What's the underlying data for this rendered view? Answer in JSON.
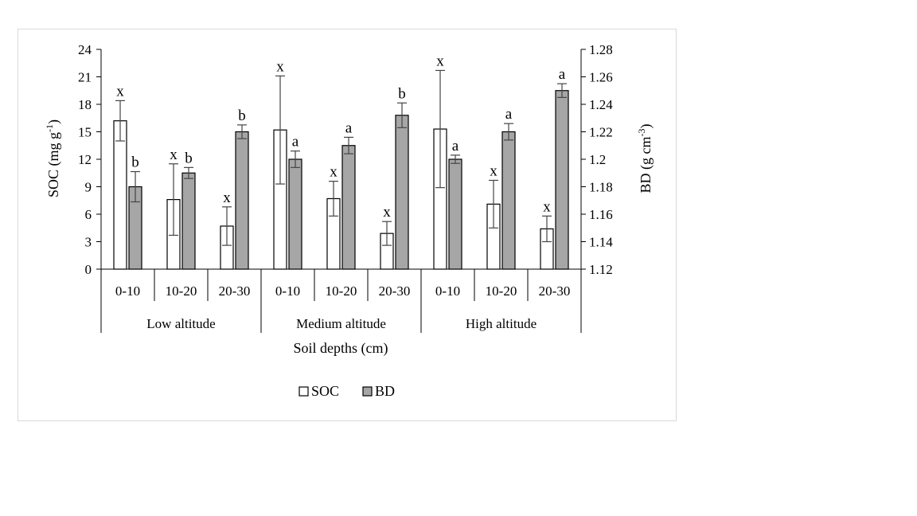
{
  "chart_data": {
    "type": "bar",
    "xlabel": "Soil depths (cm)",
    "ylabel_left": {
      "main": "SOC (mg g",
      "sup": "-1",
      "tail": ")"
    },
    "ylabel_right": {
      "main": "BD (g cm",
      "sup": "-3",
      "tail": ")"
    },
    "y_left": {
      "min": 0,
      "max": 24,
      "ticks": [
        "0",
        "3",
        "6",
        "9",
        "12",
        "15",
        "18",
        "21",
        "24"
      ]
    },
    "y_right": {
      "min": 1.12,
      "max": 1.28,
      "ticks": [
        "1.12",
        "1.14",
        "1.16",
        "1.18",
        "1.2",
        "1.22",
        "1.24",
        "1.26",
        "1.28"
      ]
    },
    "groups": [
      {
        "label": "Low altitude",
        "categories": [
          "0-10",
          "10-20",
          "20-30"
        ]
      },
      {
        "label": "Medium altitude",
        "categories": [
          "0-10",
          "10-20",
          "20-30"
        ]
      },
      {
        "label": "High altitude",
        "categories": [
          "0-10",
          "10-20",
          "20-30"
        ]
      }
    ],
    "series": [
      {
        "name": "SOC",
        "axis": "left",
        "color": "#ffffff",
        "values": [
          16.2,
          7.6,
          4.7,
          15.2,
          7.7,
          3.9,
          15.3,
          7.1,
          4.4
        ],
        "error": [
          2.2,
          3.9,
          2.1,
          5.9,
          1.9,
          1.3,
          6.4,
          2.6,
          1.4
        ],
        "letters": [
          "x",
          "x",
          "x",
          "x",
          "x",
          "x",
          "x",
          "x",
          "x"
        ]
      },
      {
        "name": "BD",
        "axis": "right",
        "color": "#a6a6a6",
        "values": [
          1.18,
          1.19,
          1.22,
          1.2,
          1.21,
          1.232,
          1.2,
          1.22,
          1.25
        ],
        "error": [
          0.011,
          0.004,
          0.005,
          0.006,
          0.006,
          0.009,
          0.003,
          0.006,
          0.005
        ],
        "letters": [
          "b",
          "b",
          "b",
          "a",
          "a",
          "b",
          "a",
          "a",
          "a"
        ]
      }
    ],
    "legend": {
      "position": "bottom",
      "items": [
        "SOC",
        "BD"
      ]
    }
  }
}
